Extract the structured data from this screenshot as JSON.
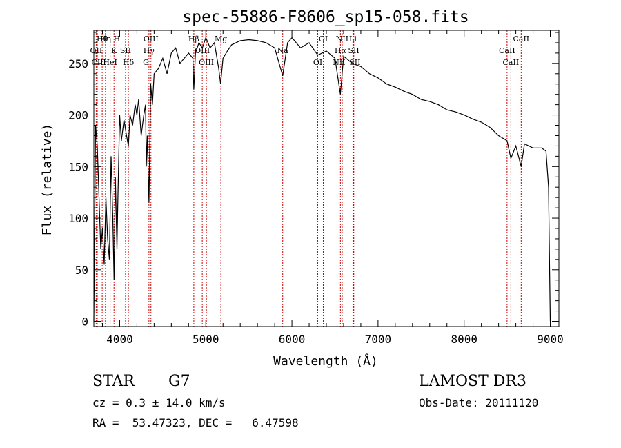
{
  "chart_data": {
    "type": "line",
    "title": "spec-55886-F8606_sp15-058.fits",
    "xlabel": "Wavelength (Å)",
    "ylabel": "Flux (relative)",
    "xlim": [
      3700,
      9100
    ],
    "ylim": [
      -5,
      282
    ],
    "xticks": [
      4000,
      5000,
      6000,
      7000,
      8000,
      9000
    ],
    "yticks": [
      0,
      50,
      100,
      150,
      200,
      250
    ],
    "series": [
      {
        "name": "spectrum",
        "x": [
          3700,
          3720,
          3740,
          3760,
          3780,
          3800,
          3820,
          3840,
          3860,
          3880,
          3900,
          3920,
          3935,
          3950,
          3968,
          3980,
          4000,
          4020,
          4050,
          4080,
          4101,
          4120,
          4150,
          4180,
          4200,
          4220,
          4250,
          4280,
          4300,
          4310,
          4320,
          4340,
          4360,
          4380,
          4400,
          4450,
          4500,
          4550,
          4600,
          4650,
          4700,
          4750,
          4800,
          4850,
          4861,
          4880,
          4920,
          4960,
          5000,
          5050,
          5100,
          5150,
          5172,
          5200,
          5250,
          5300,
          5350,
          5400,
          5500,
          5600,
          5700,
          5800,
          5893,
          5950,
          6000,
          6100,
          6200,
          6300,
          6400,
          6500,
          6563,
          6600,
          6700,
          6800,
          6900,
          7000,
          7100,
          7200,
          7300,
          7400,
          7500,
          7600,
          7700,
          7800,
          7900,
          8000,
          8100,
          8200,
          8300,
          8400,
          8498,
          8542,
          8600,
          8662,
          8700,
          8800,
          8900,
          8950,
          8980,
          9000
        ],
        "y": [
          0,
          190,
          170,
          120,
          70,
          90,
          55,
          120,
          80,
          60,
          160,
          100,
          40,
          140,
          70,
          120,
          200,
          175,
          195,
          180,
          170,
          200,
          190,
          210,
          200,
          215,
          180,
          200,
          210,
          150,
          180,
          115,
          230,
          210,
          240,
          245,
          255,
          240,
          260,
          265,
          250,
          255,
          260,
          255,
          225,
          260,
          270,
          265,
          275,
          265,
          270,
          245,
          230,
          255,
          262,
          268,
          270,
          272,
          273,
          272,
          270,
          265,
          238,
          270,
          275,
          265,
          270,
          258,
          262,
          255,
          220,
          257,
          250,
          247,
          240,
          236,
          230,
          227,
          223,
          220,
          215,
          213,
          210,
          205,
          203,
          200,
          196,
          193,
          188,
          180,
          175,
          158,
          170,
          150,
          172,
          168,
          168,
          165,
          130,
          0
        ]
      }
    ],
    "lines": [
      {
        "name": "Hθ",
        "wavelength": 3797
      },
      {
        "name": "OII",
        "wavelength": 3727
      },
      {
        "name": "CII",
        "wavelength": 3740
      },
      {
        "name": "Hη",
        "wavelength": 3835
      },
      {
        "name": "K",
        "wavelength": 3934
      },
      {
        "name": "HeI",
        "wavelength": 3889
      },
      {
        "name": "H",
        "wavelength": 3968
      },
      {
        "name": "SII",
        "wavelength": 4068
      },
      {
        "name": "Hδ",
        "wavelength": 4101
      },
      {
        "name": "OIII",
        "wavelength": 4363
      },
      {
        "name": "Hγ",
        "wavelength": 4340
      },
      {
        "name": "G",
        "wavelength": 4305
      },
      {
        "name": "Hβ",
        "wavelength": 4861
      },
      {
        "name": "OIII",
        "wavelength": 4959
      },
      {
        "name": "OIII",
        "wavelength": 5007
      },
      {
        "name": "Mg",
        "wavelength": 5175
      },
      {
        "name": "Na",
        "wavelength": 5893
      },
      {
        "name": "OI",
        "wavelength": 6300
      },
      {
        "name": "OI",
        "wavelength": 6364
      },
      {
        "name": "Hα",
        "wavelength": 6563
      },
      {
        "name": "NII",
        "wavelength": 6548
      },
      {
        "name": "NII",
        "wavelength": 6584
      },
      {
        "name": "SII",
        "wavelength": 6717
      },
      {
        "name": "SII",
        "wavelength": 6731
      },
      {
        "name": "Li",
        "wavelength": 6708
      },
      {
        "name": "CaII",
        "wavelength": 8498
      },
      {
        "name": "CaII",
        "wavelength": 8542
      },
      {
        "name": "CaII",
        "wavelength": 8662
      }
    ]
  },
  "info": {
    "class_label": "STAR",
    "subclass": "G7",
    "survey": "LAMOST DR3",
    "cz": "cz = 0.3 ± 14.0 km/s",
    "obs_date": "Obs-Date: 20111120",
    "coords": "RA =  53.47323, DEC =   6.47598"
  }
}
